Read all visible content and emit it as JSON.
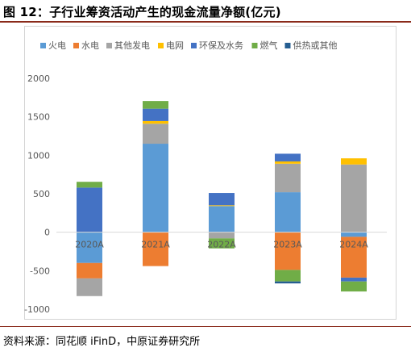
{
  "figure": {
    "label": "图 12：",
    "title": "子行业筹资活动产生的现金流量净额(亿元)",
    "source": "资料来源：同花顺 iFinD，中原证券研究所"
  },
  "chart_data": {
    "type": "bar",
    "stacked": true,
    "categories": [
      "2020A",
      "2021A",
      "2022A",
      "2023A",
      "2024A"
    ],
    "ylim": [
      -1000,
      2000
    ],
    "yticks": [
      2000,
      1500,
      1000,
      500,
      0,
      -500,
      -1000
    ],
    "grid": false,
    "legend": "top",
    "series": [
      {
        "name": "火电",
        "color": "#5b9bd5",
        "values": [
          -400,
          1150,
          340,
          520,
          -60
        ]
      },
      {
        "name": "水电",
        "color": "#ed7d31",
        "values": [
          -200,
          -440,
          0,
          -490,
          -530
        ]
      },
      {
        "name": "其他发电",
        "color": "#a5a5a5",
        "values": [
          -230,
          260,
          -80,
          370,
          880
        ]
      },
      {
        "name": "电网",
        "color": "#ffc000",
        "values": [
          0,
          35,
          10,
          30,
          80
        ]
      },
      {
        "name": "环保及水务",
        "color": "#4472c4",
        "values": [
          580,
          160,
          160,
          100,
          0
        ]
      },
      {
        "name": "燃气",
        "color": "#70ad47",
        "values": [
          75,
          100,
          0,
          0,
          0
        ]
      },
      {
        "name": "供热或其他",
        "color": "#255e91",
        "values": [
          0,
          0,
          0,
          -25,
          0
        ]
      }
    ],
    "negative_extras": {
      "燃气": [
        0,
        0,
        -130,
        -150,
        -130
      ],
      "环保及水务": [
        0,
        0,
        0,
        0,
        -50
      ]
    }
  }
}
